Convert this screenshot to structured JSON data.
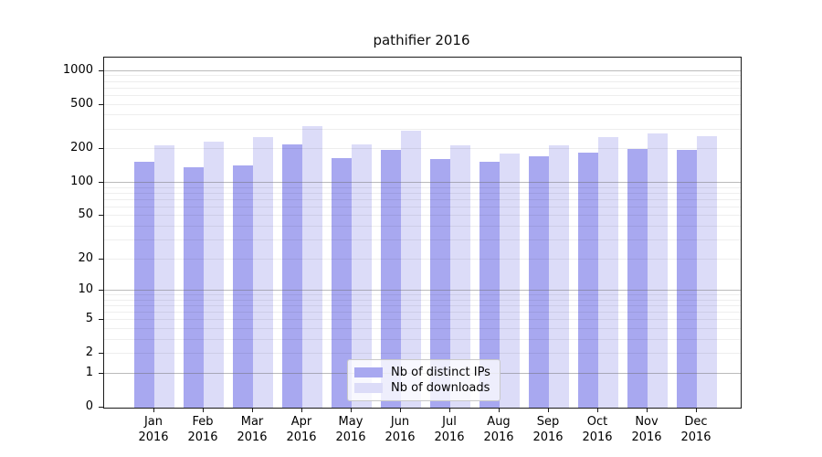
{
  "title": "pathifier 2016",
  "legend": {
    "items": [
      {
        "label": "Nb of distinct IPs",
        "color": "#a8a8f0"
      },
      {
        "label": "Nb of downloads",
        "color": "#dcdcf8"
      }
    ]
  },
  "colors": {
    "bar_ips": "#a8a8f0",
    "bar_downloads": "#dcdcf8",
    "grid_major": "rgba(105,105,105,0.45)",
    "grid_minor": "rgba(0,0,0,0.065)",
    "spine": "#1a1a1a"
  },
  "chart_data": {
    "type": "bar",
    "title": "pathifier 2016",
    "categories": [
      "Jan 2016",
      "Feb 2016",
      "Mar 2016",
      "Apr 2016",
      "May 2016",
      "Jun 2016",
      "Jul 2016",
      "Aug 2016",
      "Sep 2016",
      "Oct 2016",
      "Nov 2016",
      "Dec 2016"
    ],
    "series": [
      {
        "name": "Nb of distinct IPs",
        "values": [
          155,
          139,
          143,
          222,
          167,
          196,
          162,
          155,
          173,
          188,
          200,
          198
        ]
      },
      {
        "name": "Nb of downloads",
        "values": [
          218,
          232,
          257,
          324,
          222,
          291,
          216,
          183,
          216,
          258,
          278,
          263
        ]
      }
    ],
    "yscale": "log10(v+1)",
    "yticks": [
      0,
      1,
      2,
      5,
      10,
      20,
      50,
      100,
      200,
      500,
      1000
    ],
    "major_grid_values": [
      1,
      10,
      100,
      1000
    ],
    "ylim": [
      0,
      1317
    ],
    "grid": true,
    "legend_position": "lower center"
  }
}
